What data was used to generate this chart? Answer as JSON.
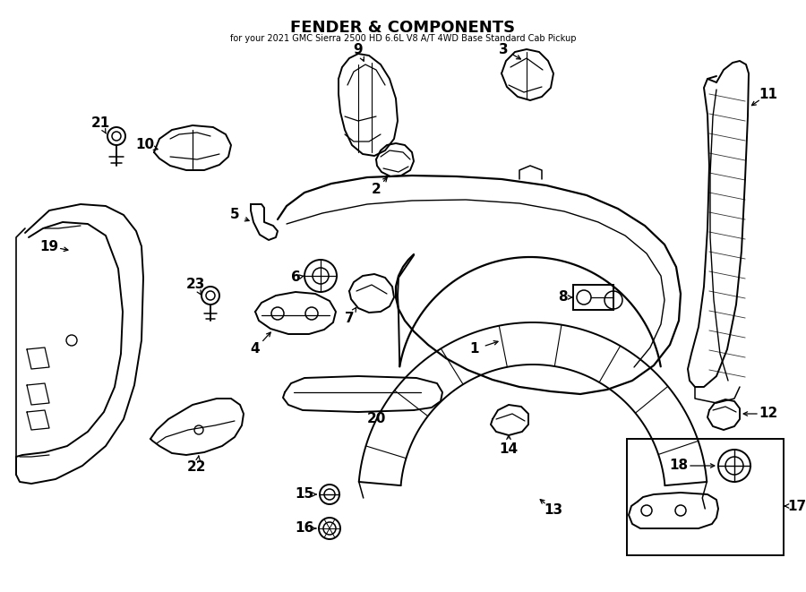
{
  "title": "FENDER & COMPONENTS",
  "subtitle": "for your 2021 GMC Sierra 2500 HD 6.6L V8 A/T 4WD Base Standard Cab Pickup",
  "bg_color": "#ffffff",
  "line_color": "#000000",
  "label_color": "#000000",
  "figw": 9.0,
  "figh": 6.61,
  "dpi": 100
}
